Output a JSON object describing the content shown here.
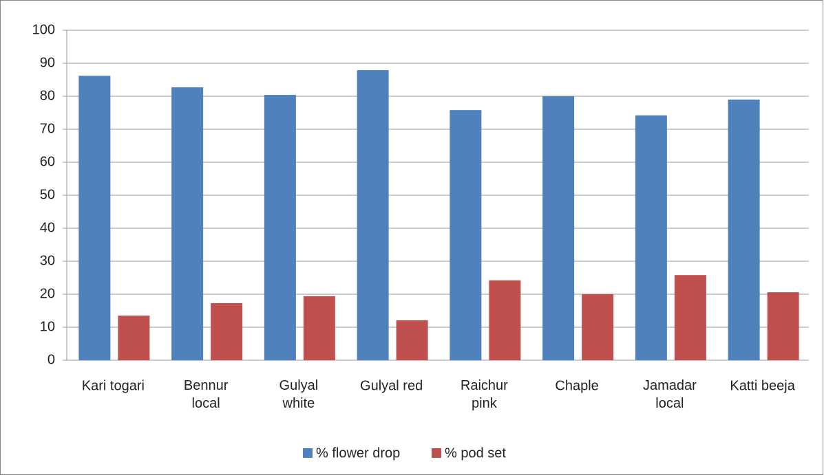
{
  "chart_data": {
    "type": "bar",
    "categories": [
      "Kari togari",
      "Bennur\nlocal",
      "Gulyal\nwhite",
      "Gulyal red",
      "Raichur\npink",
      "Chaple",
      "Jamadar\nlocal",
      "Katti beeja"
    ],
    "series": [
      {
        "name": "% flower drop",
        "color": "#4f81bd",
        "values": [
          86.2,
          82.7,
          80.4,
          87.9,
          75.8,
          80,
          74.2,
          79
        ]
      },
      {
        "name": "% pod set",
        "color": "#c0504d",
        "values": [
          13.5,
          17.3,
          19.4,
          12.1,
          24.2,
          20,
          25.8,
          20.6
        ]
      }
    ],
    "ylim": [
      0,
      100
    ],
    "yticks": [
      0,
      10,
      20,
      30,
      40,
      50,
      60,
      70,
      80,
      90,
      100
    ],
    "grid": true,
    "legend": "bottom"
  }
}
